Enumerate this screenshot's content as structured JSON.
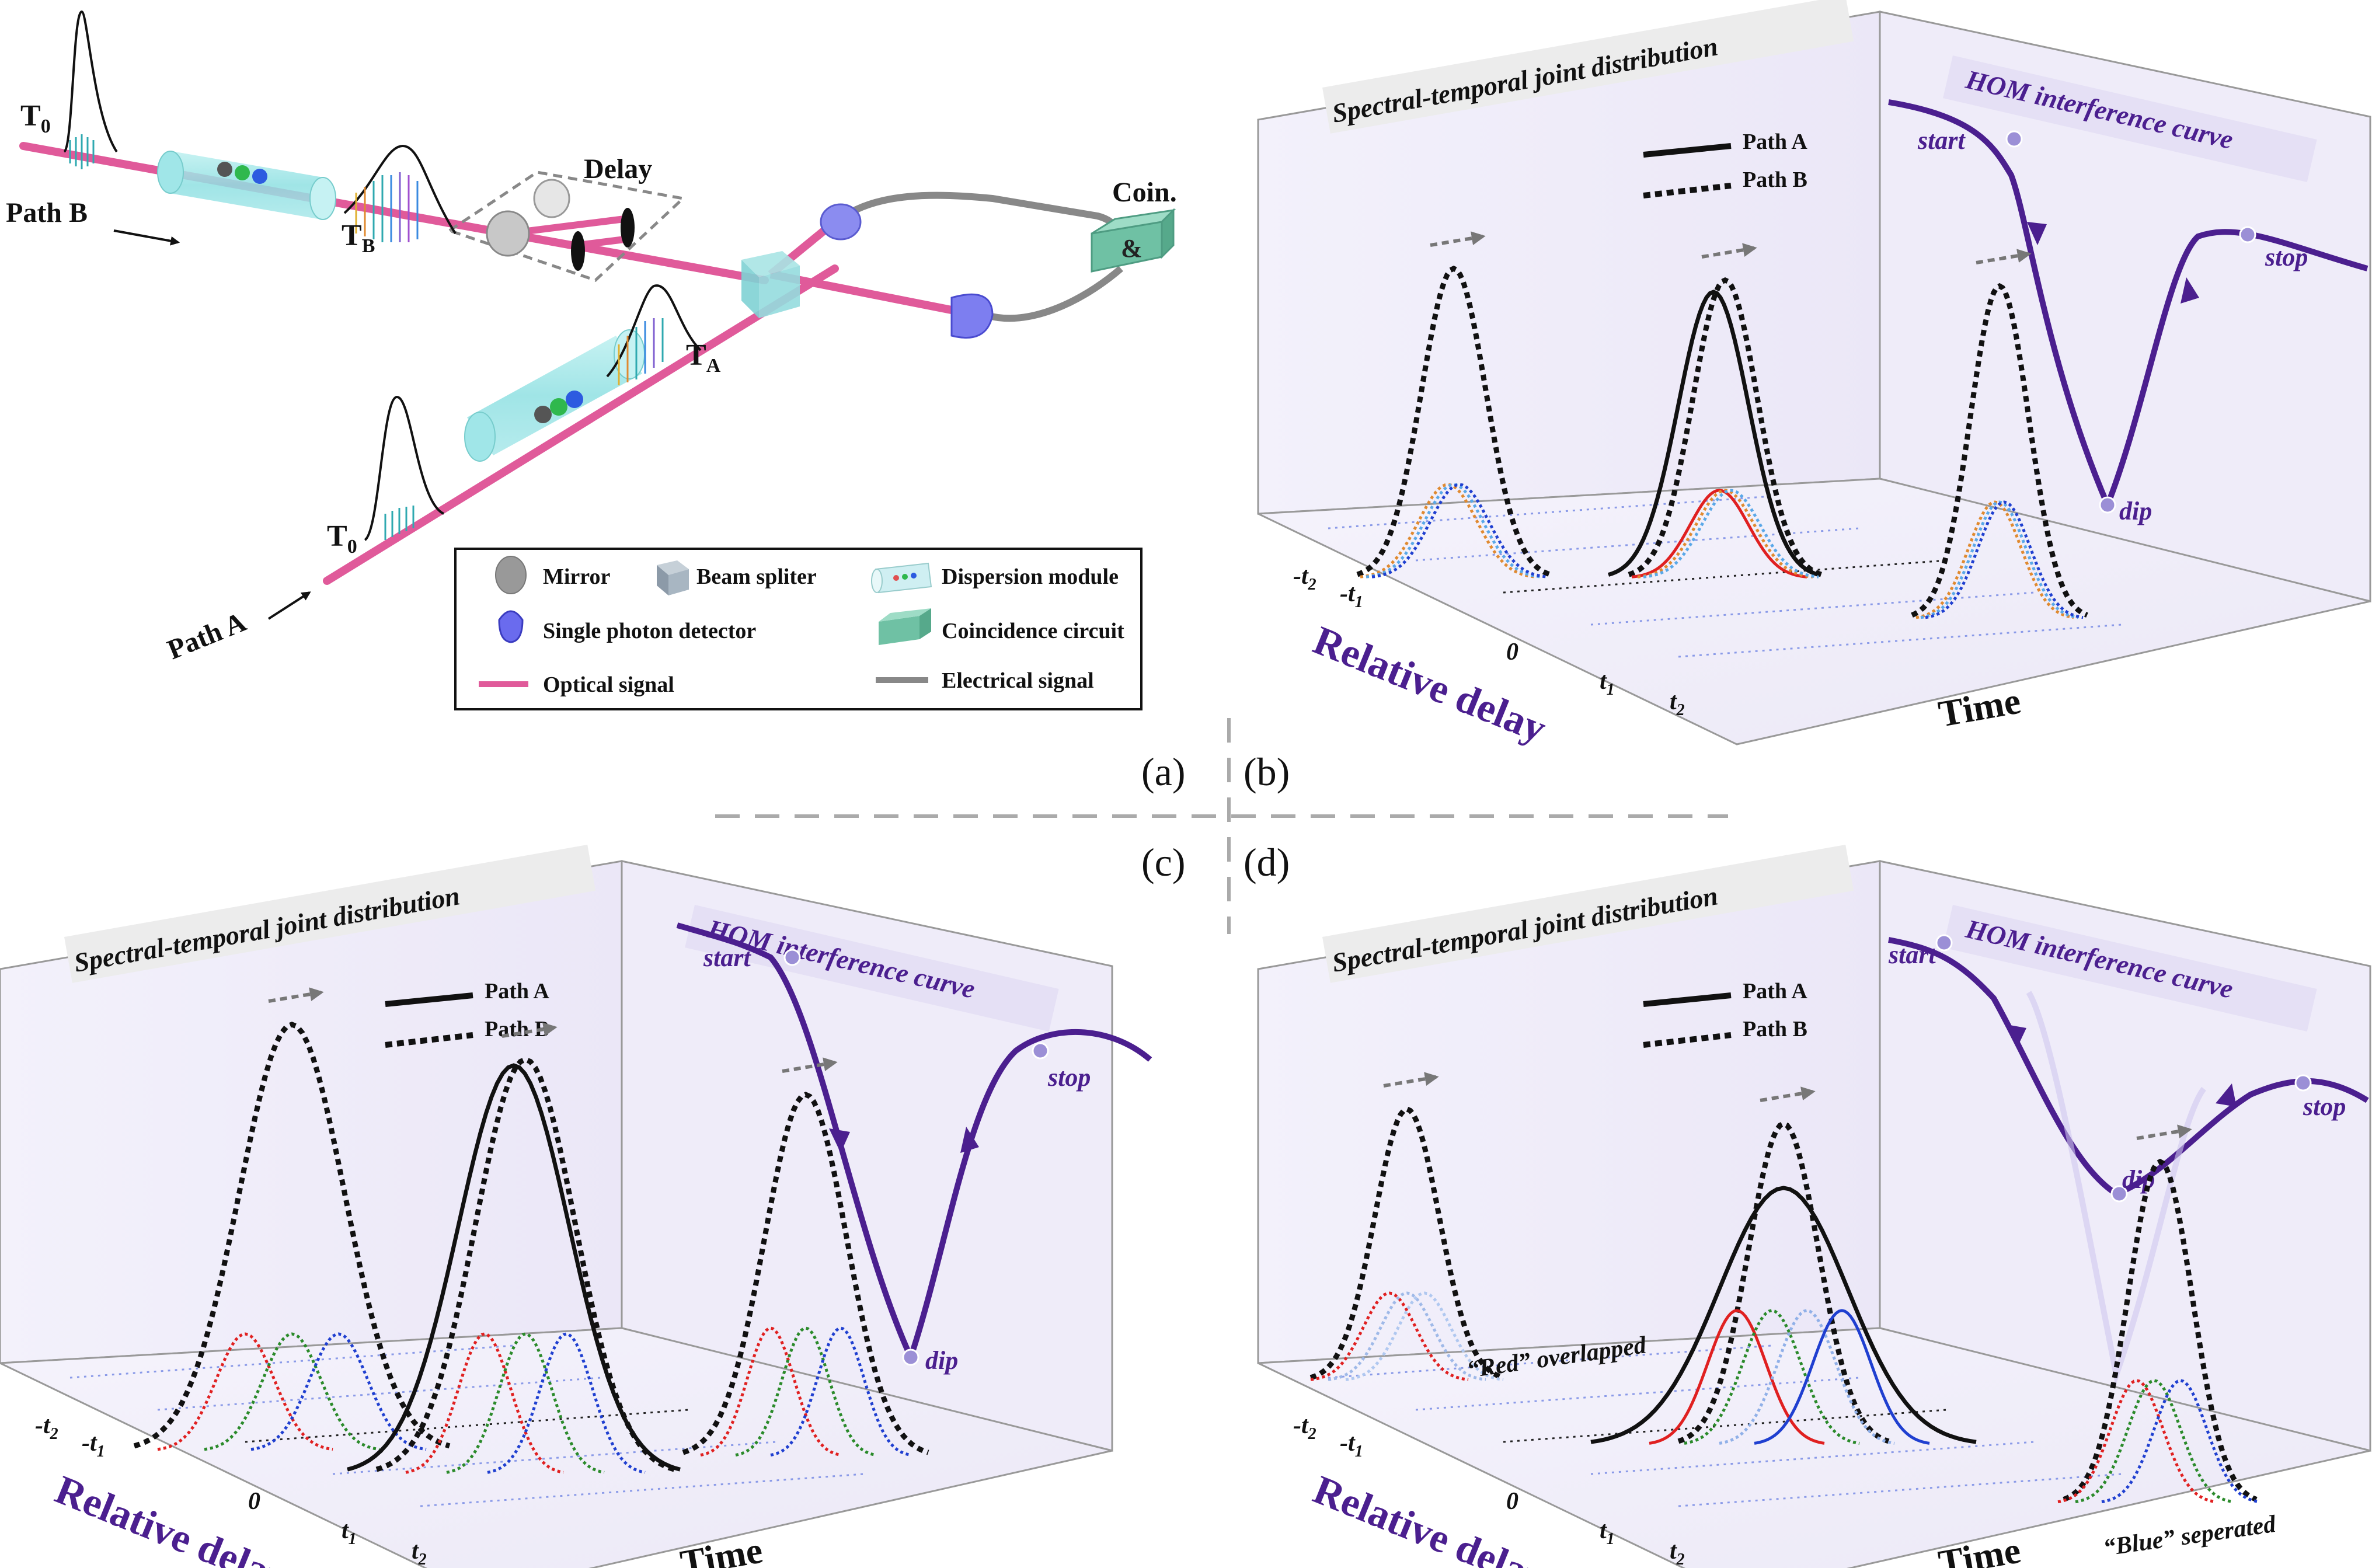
{
  "panel_labels": {
    "a": "(a)",
    "b": "(b)",
    "c": "(c)",
    "d": "(d)"
  },
  "setup": {
    "t0_top": "T",
    "t0_top_sub": "0",
    "t0_bottom": "T",
    "t0_bottom_sub": "0",
    "tb": "T",
    "tb_sub": "B",
    "ta": "T",
    "ta_sub": "A",
    "path_b": "Path B",
    "path_a": "Path A",
    "delay": "Delay",
    "coin": "Coin.",
    "coin_symbol": "&",
    "legend": {
      "mirror": "Mirror",
      "beam_splitter": "Beam spliter",
      "dispersion_module": "Dispersion module",
      "single_photon_detector": "Single photon detector",
      "coincidence_circuit": "Coincidence circuit",
      "optical_signal": "Optical signal",
      "electrical_signal": "Electrical signal"
    }
  },
  "plot_common": {
    "title": "Spectral-temporal joint distribution",
    "legend_a": "Path A",
    "legend_b": "Path B",
    "hom_title": "HOM interference curve",
    "start": "start",
    "stop": "stop",
    "dip": "dip",
    "xlabel": "Relative delay",
    "zlabel": "Time",
    "ticks": [
      "-t",
      "-t",
      "0",
      "t",
      "t"
    ],
    "tick_subs": [
      "2",
      "1",
      "",
      "1",
      "2"
    ]
  },
  "panel_d": {
    "red_note": "“Red” overlapped",
    "blue_note": "“Blue” seperated"
  },
  "colors": {
    "hom": "#4b1f8f",
    "optical": "#e05a9a",
    "electrical": "#8a8a8a",
    "red": "#e02020",
    "green": "#2a8a2a",
    "blue": "#1f3fd0",
    "orange": "#e08a30",
    "lightblue": "#5aa8e8"
  }
}
